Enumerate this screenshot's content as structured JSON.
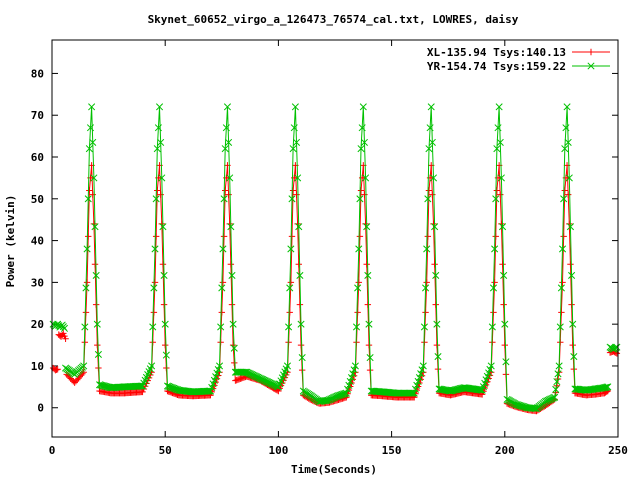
{
  "chart_data": {
    "type": "line",
    "title": "Skynet_60652_virgo_a_126473_76574_cal.txt, LOWRES, daisy",
    "xlabel": "Time(Seconds)",
    "ylabel": "Power (kelvin)",
    "xlim": [
      0,
      250
    ],
    "ylim": [
      -7,
      88
    ],
    "xticks": [
      0,
      50,
      100,
      150,
      200,
      250
    ],
    "yticks": [
      0,
      10,
      20,
      30,
      40,
      50,
      60,
      70,
      80
    ],
    "grid": false,
    "legend_position": "top-right",
    "peak_times": [
      17,
      47,
      77,
      107,
      137,
      167,
      197,
      227
    ],
    "series": [
      {
        "name": "XL-135.94 Tsys:140.13",
        "color": "#ff0000",
        "marker": "plus",
        "segments": [
          {
            "x": [
              0.5,
              1.5,
              2.5
            ],
            "y": [
              9.5,
              9.0,
              9.2
            ]
          },
          {
            "x": [
              3.0,
              4.0,
              5.0,
              6.0
            ],
            "y": [
              17.5,
              17.0,
              17.8,
              16.5
            ]
          },
          {
            "x": [
              6.5,
              10,
              14,
              15.5,
              16.5,
              17.5,
              18.5,
              20,
              21,
              26,
              32,
              40,
              44,
              45.5,
              46.5,
              47.5,
              48.5,
              50,
              51,
              56,
              62,
              70,
              74,
              75.5,
              76.5,
              77.5,
              78.5,
              80,
              81,
              86,
              92,
              100,
              104,
              105.5,
              106.5,
              107.5,
              108.5,
              110,
              111,
              114,
              118,
              122,
              126,
              130,
              134,
              135.5,
              136.5,
              137.5,
              138.5,
              140,
              141,
              146,
              152,
              160,
              164,
              165.5,
              166.5,
              167.5,
              168.5,
              170,
              171,
              176,
              182,
              190,
              194,
              195.5,
              196.5,
              197.5,
              198.5,
              200,
              201,
              205,
              210,
              214,
              218,
              222,
              224,
              225.5,
              226.5,
              227.5,
              228.5,
              230,
              231,
              236,
              240,
              244,
              245.5
            ],
            "y": [
              8.0,
              6.0,
              8.5,
              30,
              52,
              58,
              44,
              15,
              4.0,
              3.5,
              3.5,
              3.8,
              8.5,
              30,
              52,
              58,
              44,
              15,
              4.0,
              3.0,
              2.8,
              3.0,
              8.5,
              30,
              52,
              58,
              44,
              15,
              6.5,
              7.5,
              6.5,
              4.0,
              8.5,
              30,
              52,
              58,
              44,
              15,
              3.0,
              2.0,
              1.0,
              1.2,
              1.8,
              2.5,
              8.5,
              30,
              52,
              58,
              44,
              15,
              3.0,
              2.8,
              2.5,
              2.5,
              8.5,
              30,
              52,
              58,
              44,
              15,
              3.5,
              3.0,
              3.8,
              3.2,
              8.5,
              30,
              52,
              58,
              44,
              15,
              1.0,
              0.2,
              -0.5,
              -0.8,
              0.5,
              2.0,
              8.5,
              30,
              52,
              58,
              44,
              15,
              3.5,
              3.0,
              3.2,
              3.5,
              4.0
            ]
          },
          {
            "x": [
              246.5,
              248,
              249.5
            ],
            "y": [
              13.2,
              13.5,
              13.0
            ]
          }
        ]
      },
      {
        "name": "YR-154.74 Tsys:159.22",
        "color": "#00c000",
        "marker": "x",
        "segments": [
          {
            "x": [
              0.5,
              1.5,
              2.5,
              3.5,
              4.5,
              5.5
            ],
            "y": [
              20.0,
              19.5,
              20.0,
              19.3,
              19.8,
              19.0
            ]
          },
          {
            "x": [
              6.0,
              10,
              14,
              15.5,
              16.5,
              17.5,
              18.5,
              20,
              21,
              26,
              32,
              40,
              44,
              45.5,
              46.5,
              47.5,
              48.5,
              50,
              51,
              56,
              62,
              70,
              74,
              75.5,
              76.5,
              77.5,
              78.5,
              80,
              81,
              86,
              92,
              100,
              104,
              105.5,
              106.5,
              107.5,
              108.5,
              110,
              111,
              114,
              118,
              122,
              126,
              130,
              134,
              135.5,
              136.5,
              137.5,
              138.5,
              140,
              141,
              146,
              152,
              160,
              164,
              165.5,
              166.5,
              167.5,
              168.5,
              170,
              171,
              176,
              182,
              190,
              194,
              195.5,
              196.5,
              197.5,
              198.5,
              200,
              201,
              205,
              210,
              214,
              218,
              222,
              224,
              225.5,
              226.5,
              227.5,
              228.5,
              230,
              231,
              236,
              240,
              244,
              245.5
            ],
            "y": [
              9.5,
              8.0,
              10.0,
              38,
              62,
              72,
              55,
              20,
              5.5,
              4.8,
              5.0,
              5.2,
              10.0,
              38,
              62,
              72,
              55,
              20,
              5.2,
              4.2,
              3.8,
              4.0,
              10.0,
              38,
              62,
              72,
              55,
              20,
              8.5,
              8.5,
              7.0,
              5.0,
              10.0,
              38,
              62,
              72,
              55,
              20,
              4.0,
              3.0,
              1.5,
              1.8,
              2.8,
              3.5,
              10.0,
              38,
              62,
              72,
              55,
              20,
              4.0,
              3.8,
              3.5,
              3.5,
              10.0,
              38,
              62,
              72,
              55,
              20,
              4.5,
              4.0,
              4.8,
              4.2,
              10.0,
              38,
              62,
              72,
              55,
              20,
              2.0,
              0.8,
              0.0,
              -0.2,
              1.5,
              2.5,
              10.0,
              38,
              62,
              72,
              55,
              20,
              4.5,
              4.2,
              4.5,
              4.8,
              5.0
            ]
          },
          {
            "x": [
              246.5,
              248,
              249.5
            ],
            "y": [
              14.5,
              14.0,
              14.5
            ]
          }
        ]
      }
    ]
  }
}
